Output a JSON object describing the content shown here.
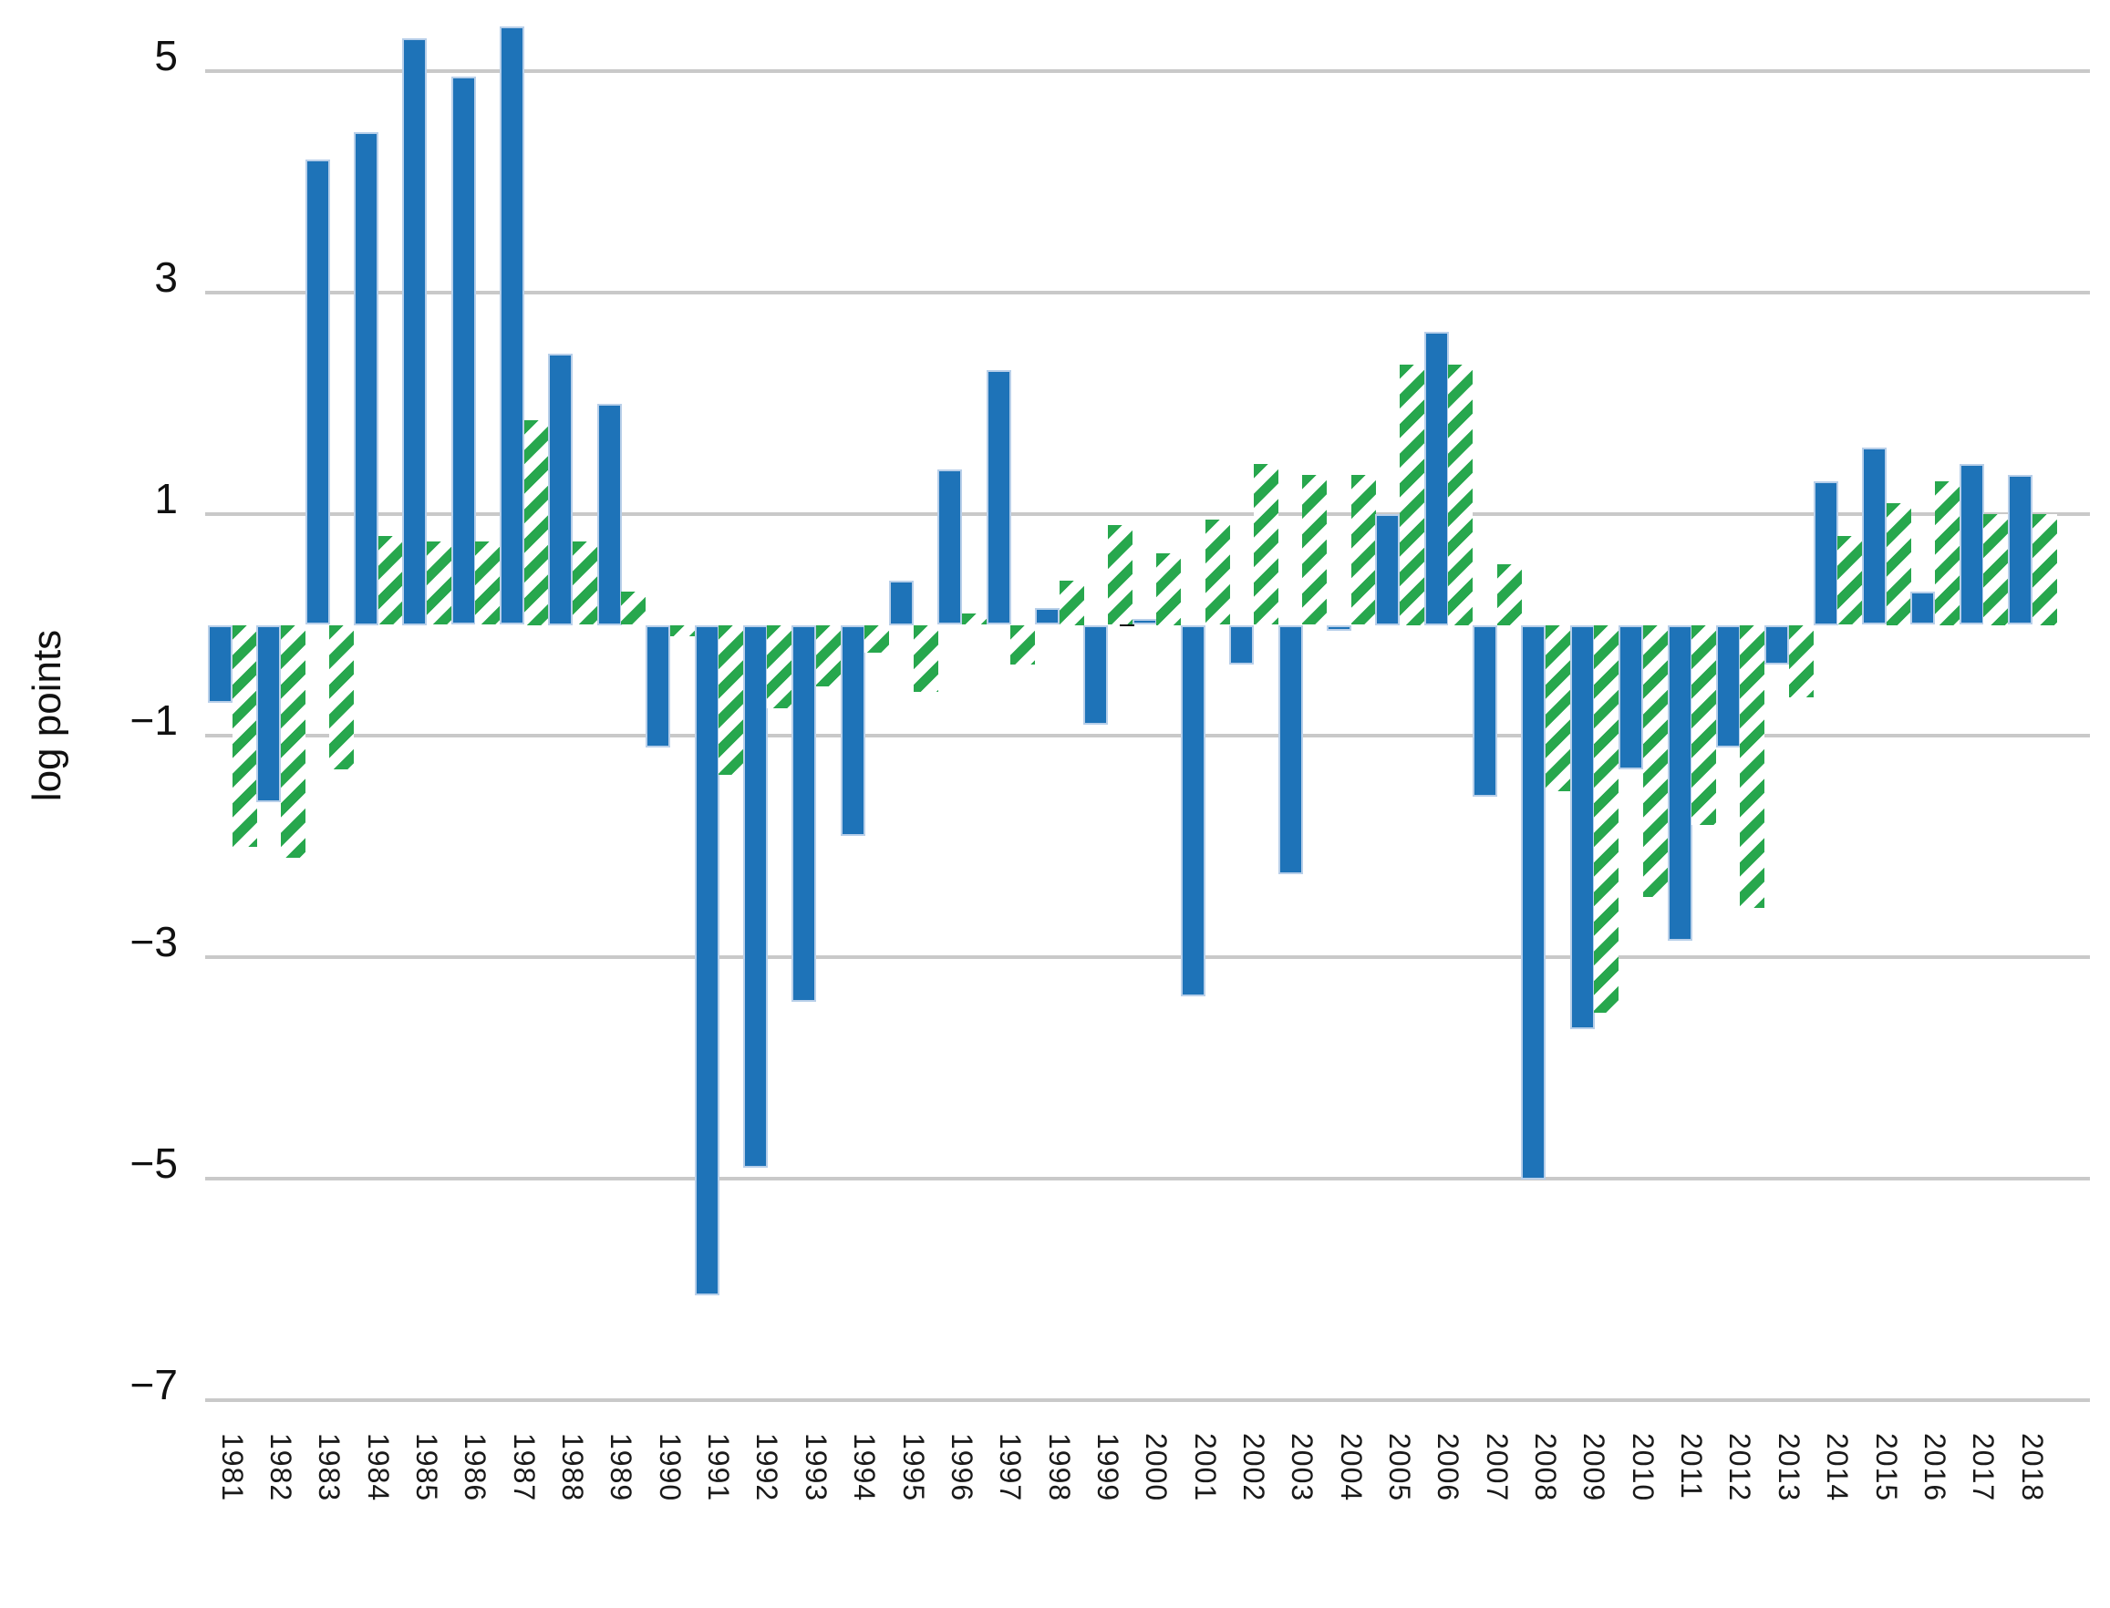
{
  "chart_data": {
    "type": "bar",
    "title": "",
    "xlabel": "",
    "ylabel": "log points",
    "grid": true,
    "legend_position": "none",
    "ylim": [
      -7.4,
      5.6
    ],
    "ytick_values": [
      5,
      3,
      1,
      -1,
      -3,
      -5,
      -7
    ],
    "ytick_labels": [
      "5",
      "3",
      "1",
      "−1",
      "−3",
      "−5",
      "−7"
    ],
    "categories": [
      "1981",
      "1982",
      "1983",
      "1984",
      "1985",
      "1986",
      "1987",
      "1988",
      "1989",
      "1990",
      "1991",
      "1992",
      "1993",
      "1994",
      "1995",
      "1996",
      "1997",
      "1998",
      "1999",
      "2000",
      "2001",
      "2002",
      "2003",
      "2004",
      "2005",
      "2006",
      "2007",
      "2008",
      "2009",
      "2010",
      "2011",
      "2012",
      "2013",
      "2014",
      "2015",
      "2016",
      "2017",
      "2018"
    ],
    "series": [
      {
        "name": "solid",
        "style": "solid",
        "color": "#1e73b8",
        "values": [
          -0.7,
          -1.6,
          4.2,
          4.45,
          5.3,
          4.95,
          5.4,
          2.45,
          2.0,
          -1.1,
          -6.05,
          -4.9,
          -3.4,
          -1.9,
          0.4,
          1.4,
          2.3,
          0.15,
          -0.9,
          0.05,
          -3.35,
          -0.35,
          -2.25,
          -0.05,
          1.0,
          2.65,
          -1.55,
          -5.0,
          -3.65,
          -1.3,
          -2.85,
          -1.1,
          -0.35,
          1.3,
          1.6,
          0.3,
          1.45,
          1.35
        ]
      },
      {
        "name": "hatched",
        "style": "hatched",
        "color": "#27a74d",
        "values": [
          -2.0,
          -2.1,
          -1.3,
          0.8,
          0.75,
          0.75,
          1.85,
          0.75,
          0.3,
          -0.1,
          -1.35,
          -0.75,
          -0.55,
          -0.25,
          -0.6,
          0.1,
          -0.35,
          0.4,
          0.9,
          0.65,
          0.95,
          1.45,
          1.35,
          1.35,
          2.35,
          2.35,
          0.55,
          -1.5,
          -3.5,
          -2.45,
          -1.8,
          -2.55,
          -0.65,
          0.8,
          1.1,
          1.3,
          1.0,
          1.0
        ]
      }
    ],
    "colors": {
      "bar_blue": "#1e73b8",
      "bar_blue_edge": "#b8cfe9",
      "bar_green": "#27a74d",
      "gridline": "#c9c9c9",
      "text": "#111111",
      "background": "#ffffff"
    }
  }
}
